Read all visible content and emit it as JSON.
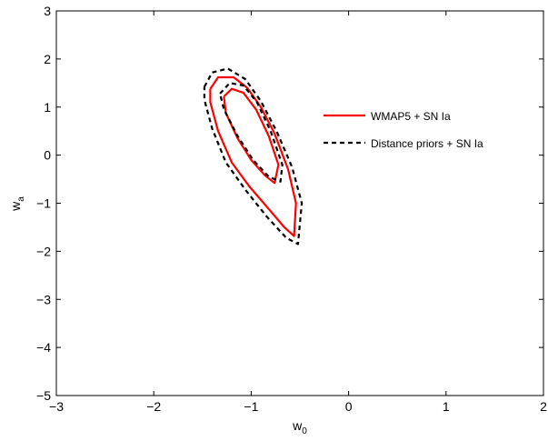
{
  "chart_data": {
    "type": "line",
    "title": "",
    "xlabel": {
      "main": "w",
      "sub": "0"
    },
    "ylabel": {
      "main": "w",
      "sub": "a"
    },
    "xlim": [
      -3,
      2
    ],
    "ylim": [
      -5,
      3
    ],
    "xticks": [
      -3,
      -2,
      -1,
      0,
      1,
      2
    ],
    "yticks": [
      -5,
      -4,
      -3,
      -2,
      -1,
      0,
      1,
      2,
      3
    ],
    "grid": false,
    "legend_position": "right",
    "series": [
      {
        "name": "WMAP5 + SN Ia",
        "color": "#ff0000",
        "style": "solid",
        "contours": [
          {
            "level": "inner",
            "points": [
              [
                -1.28,
                1.22
              ],
              [
                -1.2,
                1.38
              ],
              [
                -1.08,
                1.3
              ],
              [
                -0.95,
                0.95
              ],
              [
                -0.82,
                0.4
              ],
              [
                -0.72,
                -0.2
              ],
              [
                -0.76,
                -0.58
              ],
              [
                -0.86,
                -0.42
              ],
              [
                -1.0,
                -0.1
              ],
              [
                -1.14,
                0.35
              ],
              [
                -1.26,
                0.88
              ],
              [
                -1.28,
                1.22
              ]
            ]
          },
          {
            "level": "outer",
            "points": [
              [
                -1.42,
                1.38
              ],
              [
                -1.34,
                1.62
              ],
              [
                -1.18,
                1.62
              ],
              [
                -1.04,
                1.4
              ],
              [
                -0.9,
                1.0
              ],
              [
                -0.76,
                0.45
              ],
              [
                -0.62,
                -0.3
              ],
              [
                -0.54,
                -1.0
              ],
              [
                -0.56,
                -1.68
              ],
              [
                -0.66,
                -1.5
              ],
              [
                -0.82,
                -1.12
              ],
              [
                -1.02,
                -0.65
              ],
              [
                -1.2,
                -0.15
              ],
              [
                -1.34,
                0.5
              ],
              [
                -1.42,
                1.1
              ],
              [
                -1.42,
                1.38
              ]
            ]
          }
        ]
      },
      {
        "name": "Distance priors + SN Ia",
        "color": "#000000",
        "style": "dashed",
        "contours": [
          {
            "level": "inner",
            "points": [
              [
                -1.32,
                1.28
              ],
              [
                -1.22,
                1.5
              ],
              [
                -1.08,
                1.45
              ],
              [
                -0.94,
                1.1
              ],
              [
                -0.8,
                0.5
              ],
              [
                -0.68,
                -0.2
              ],
              [
                -0.7,
                -0.55
              ],
              [
                -0.82,
                -0.45
              ],
              [
                -0.98,
                -0.1
              ],
              [
                -1.14,
                0.4
              ],
              [
                -1.28,
                0.95
              ],
              [
                -1.32,
                1.28
              ]
            ]
          },
          {
            "level": "outer",
            "points": [
              [
                -1.48,
                1.42
              ],
              [
                -1.4,
                1.72
              ],
              [
                -1.24,
                1.8
              ],
              [
                -1.06,
                1.58
              ],
              [
                -0.9,
                1.12
              ],
              [
                -0.74,
                0.5
              ],
              [
                -0.58,
                -0.25
              ],
              [
                -0.48,
                -1.0
              ],
              [
                -0.52,
                -1.85
              ],
              [
                -0.64,
                -1.72
              ],
              [
                -0.84,
                -1.28
              ],
              [
                -1.06,
                -0.72
              ],
              [
                -1.26,
                -0.15
              ],
              [
                -1.4,
                0.55
              ],
              [
                -1.48,
                1.15
              ],
              [
                -1.48,
                1.42
              ]
            ]
          }
        ]
      }
    ]
  }
}
